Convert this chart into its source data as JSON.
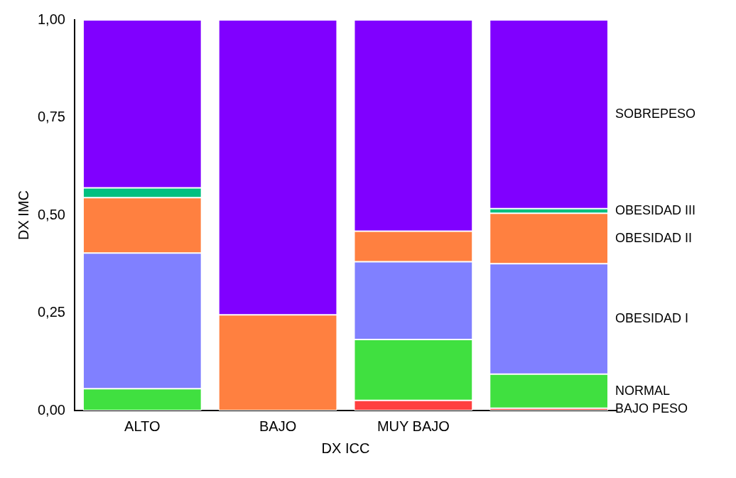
{
  "chart_data": {
    "type": "bar",
    "stacked": true,
    "xlabel": "DX ICC",
    "ylabel": "DX IMC",
    "categories": [
      "ALTO",
      "BAJO",
      "MUY BAJO",
      null
    ],
    "series": [
      {
        "name": "BAJO PESO",
        "color": "#ff4040",
        "values": [
          0,
          0,
          0.026,
          0.006
        ]
      },
      {
        "name": "NORMAL",
        "color": "#40e040",
        "values": [
          0.056,
          0,
          0.156,
          0.087
        ]
      },
      {
        "name": "OBESIDAD I",
        "color": "#8080ff",
        "values": [
          0.347,
          0,
          0.199,
          0.283
        ]
      },
      {
        "name": "OBESIDAD II",
        "color": "#ff8040",
        "values": [
          0.142,
          0.245,
          0.078,
          0.129
        ]
      },
      {
        "name": "OBESIDAD III",
        "color": "#00c080",
        "values": [
          0.025,
          0,
          0,
          0.012
        ]
      },
      {
        "name": "SOBREPESO",
        "color": "#8000ff",
        "values": [
          0.43,
          0.755,
          0.541,
          0.483
        ]
      }
    ],
    "ylim": [
      0,
      1
    ],
    "yticks": [
      {
        "value": 0,
        "label": "0,00"
      },
      {
        "value": 0.25,
        "label": "0,25"
      },
      {
        "value": 0.5,
        "label": "0,50"
      },
      {
        "value": 0.75,
        "label": "0,75"
      },
      {
        "value": 1,
        "label": "1,00"
      }
    ]
  }
}
